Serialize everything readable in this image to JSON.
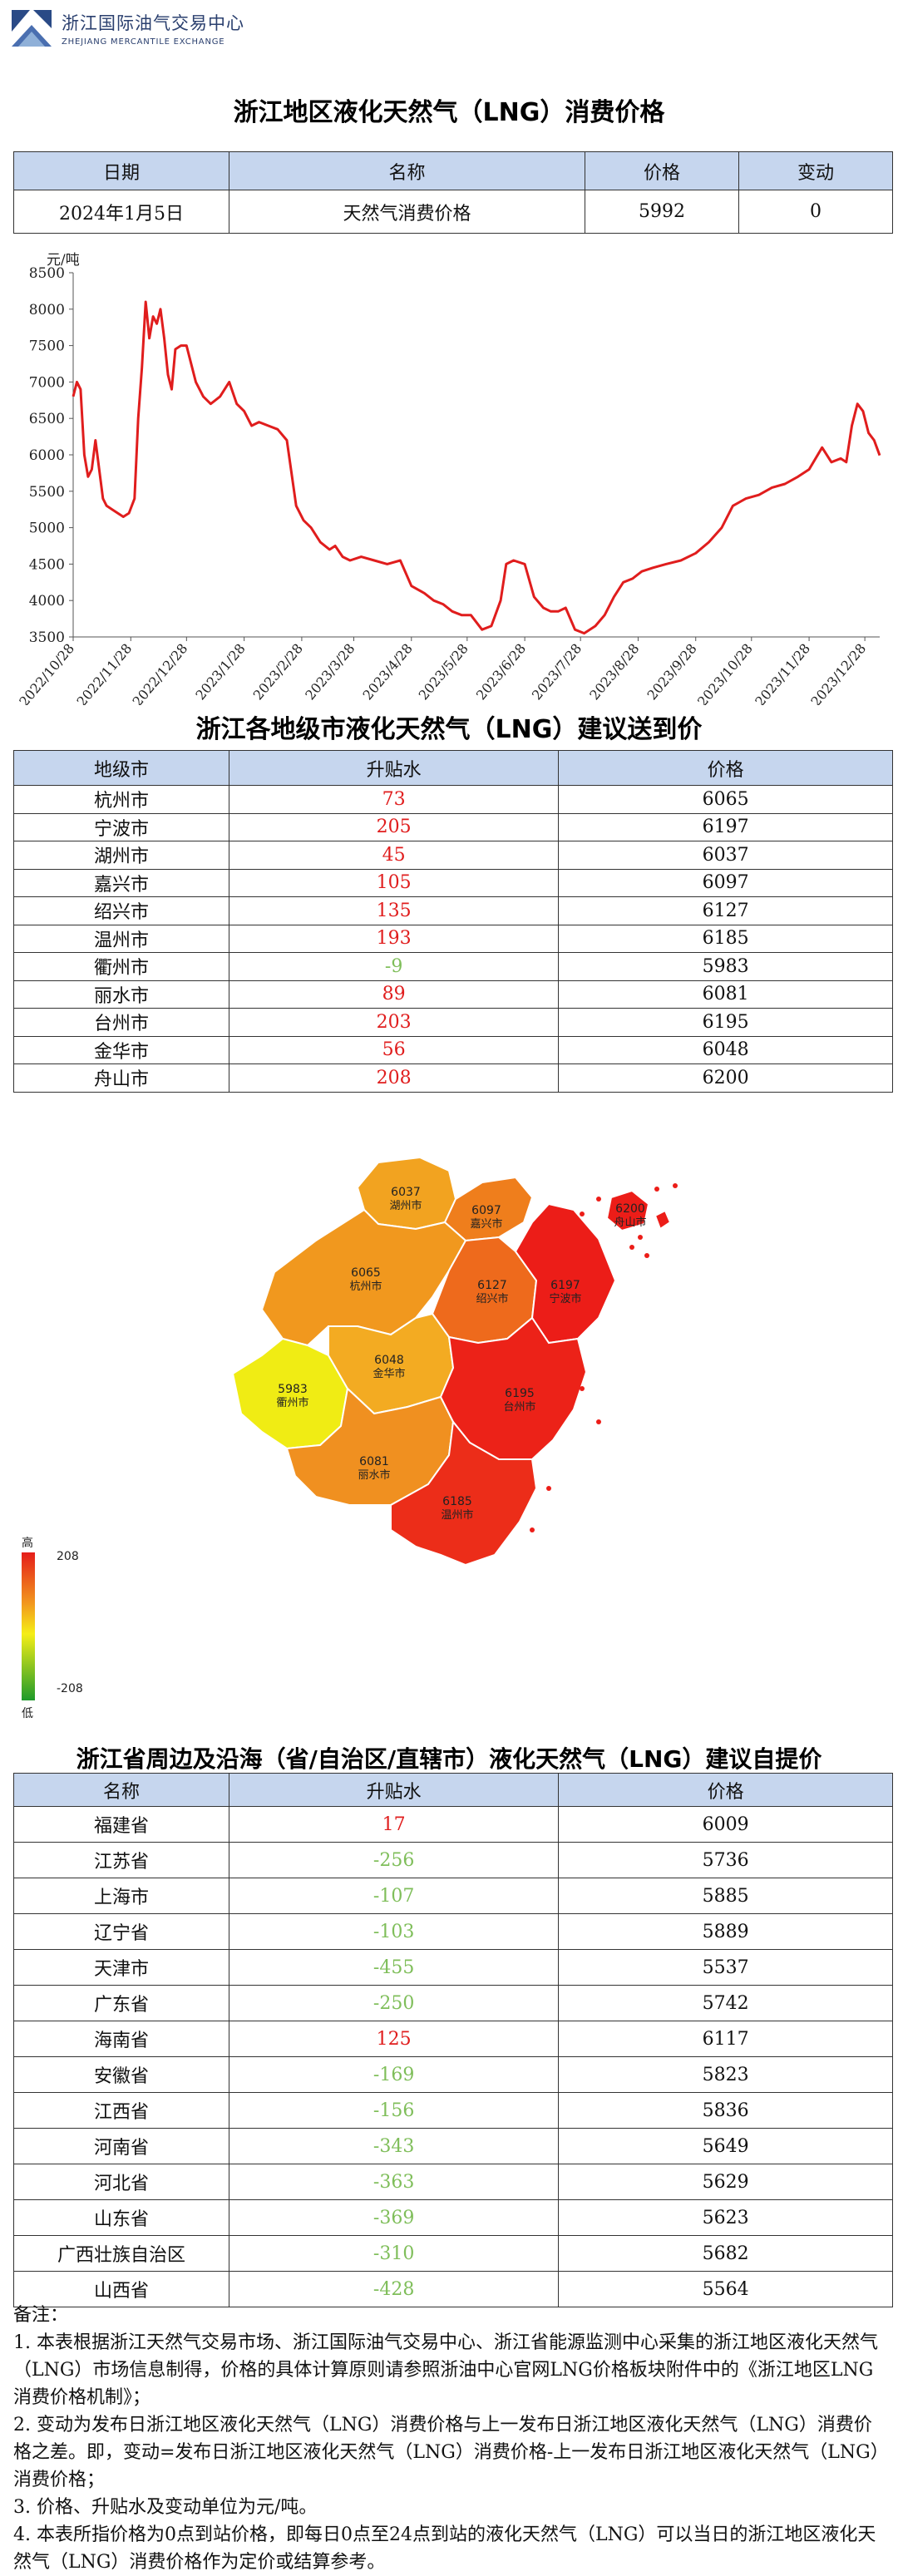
{
  "header": {
    "org_cn": "浙江国际油气交易中心",
    "org_en": "ZHEJIANG MERCANTILE EXCHANGE"
  },
  "section1": {
    "title": "浙江地区液化天然气（LNG）消费价格",
    "columns": [
      "日期",
      "名称",
      "价格",
      "变动"
    ],
    "row": {
      "date": "2024年1月5日",
      "name": "天然气消费价格",
      "price": "5992",
      "change": "0"
    }
  },
  "chart_data": {
    "type": "line",
    "title": "",
    "xlabel": "",
    "ylabel": "元/吨",
    "ylim": [
      3500,
      8500
    ],
    "yticks": [
      3500,
      4000,
      4500,
      5000,
      5500,
      6000,
      6500,
      7000,
      7500,
      8000,
      8500
    ],
    "xtick_labels": [
      "2022/10/28",
      "2022/11/28",
      "2022/12/28",
      "2023/1/28",
      "2023/2/28",
      "2023/3/28",
      "2023/4/28",
      "2023/5/28",
      "2023/6/28",
      "2023/7/28",
      "2023/8/28",
      "2023/9/28",
      "2023/10/28",
      "2023/11/28",
      "2023/12/28"
    ],
    "x_range": [
      "2022/10/28",
      "2024/1/5"
    ],
    "color": "#e01d1d",
    "series": [
      {
        "x": [
          "2022/10/28",
          "2022/10/30",
          "2022/11/1",
          "2022/11/3",
          "2022/11/5",
          "2022/11/7",
          "2022/11/9",
          "2022/11/11",
          "2022/11/13",
          "2022/11/15",
          "2022/11/18",
          "2022/11/21",
          "2022/11/24",
          "2022/11/27",
          "2022/11/30",
          "2022/12/2",
          "2022/12/4",
          "2022/12/6",
          "2022/12/8",
          "2022/12/10",
          "2022/12/12",
          "2022/12/14",
          "2022/12/16",
          "2022/12/18",
          "2022/12/20",
          "2022/12/22",
          "2022/12/25",
          "2022/12/28",
          "2023/1/2",
          "2023/1/6",
          "2023/1/10",
          "2023/1/15",
          "2023/1/20",
          "2023/1/24",
          "2023/1/28",
          "2023/2/1",
          "2023/2/5",
          "2023/2/10",
          "2023/2/15",
          "2023/2/20",
          "2023/2/25",
          "2023/3/1",
          "2023/3/5",
          "2023/3/10",
          "2023/3/15",
          "2023/3/18",
          "2023/3/22",
          "2023/3/26",
          "2023/4/1",
          "2023/4/8",
          "2023/4/15",
          "2023/4/22",
          "2023/4/28",
          "2023/5/5",
          "2023/5/10",
          "2023/5/15",
          "2023/5/20",
          "2023/5/25",
          "2023/5/30",
          "2023/6/5",
          "2023/6/10",
          "2023/6/15",
          "2023/6/18",
          "2023/6/22",
          "2023/6/28",
          "2023/7/3",
          "2023/7/8",
          "2023/7/12",
          "2023/7/16",
          "2023/7/20",
          "2023/7/25",
          "2023/7/30",
          "2023/8/5",
          "2023/8/10",
          "2023/8/15",
          "2023/8/20",
          "2023/8/25",
          "2023/8/30",
          "2023/9/5",
          "2023/9/12",
          "2023/9/20",
          "2023/9/28",
          "2023/10/5",
          "2023/10/12",
          "2023/10/18",
          "2023/10/25",
          "2023/11/1",
          "2023/11/8",
          "2023/11/15",
          "2023/11/22",
          "2023/11/28",
          "2023/12/5",
          "2023/12/10",
          "2023/12/15",
          "2023/12/18",
          "2023/12/21",
          "2023/12/24",
          "2023/12/27",
          "2023/12/30",
          "2024/1/2",
          "2024/1/5"
        ],
        "y": [
          6800,
          7000,
          6900,
          6000,
          5700,
          5800,
          6200,
          5800,
          5400,
          5300,
          5250,
          5200,
          5150,
          5200,
          5400,
          6500,
          7200,
          8100,
          7600,
          7900,
          7800,
          8000,
          7600,
          7100,
          6900,
          7450,
          7500,
          7500,
          7000,
          6800,
          6700,
          6800,
          7000,
          6700,
          6600,
          6400,
          6450,
          6400,
          6350,
          6200,
          5300,
          5100,
          5000,
          4800,
          4700,
          4750,
          4600,
          4550,
          4600,
          4550,
          4500,
          4550,
          4200,
          4100,
          4000,
          3950,
          3850,
          3800,
          3800,
          3600,
          3650,
          4000,
          4500,
          4550,
          4500,
          4050,
          3900,
          3850,
          3850,
          3900,
          3600,
          3550,
          3650,
          3800,
          4050,
          4250,
          4300,
          4400,
          4450,
          4500,
          4550,
          4650,
          4800,
          5000,
          5300,
          5400,
          5450,
          5550,
          5600,
          5700,
          5800,
          6100,
          5900,
          5950,
          5900,
          6400,
          6700,
          6600,
          6300,
          6200,
          5992
        ]
      }
    ]
  },
  "section2": {
    "title": "浙江各地级市液化天然气（LNG）建议送到价",
    "columns": [
      "地级市",
      "升贴水",
      "价格"
    ],
    "rows": [
      {
        "city": "杭州市",
        "premium": "73",
        "price": "6065"
      },
      {
        "city": "宁波市",
        "premium": "205",
        "price": "6197"
      },
      {
        "city": "湖州市",
        "premium": "45",
        "price": "6037"
      },
      {
        "city": "嘉兴市",
        "premium": "105",
        "price": "6097"
      },
      {
        "city": "绍兴市",
        "premium": "135",
        "price": "6127"
      },
      {
        "city": "温州市",
        "premium": "193",
        "price": "6185"
      },
      {
        "city": "衢州市",
        "premium": "-9",
        "price": "5983"
      },
      {
        "city": "丽水市",
        "premium": "89",
        "price": "6081"
      },
      {
        "city": "台州市",
        "premium": "203",
        "price": "6195"
      },
      {
        "city": "金华市",
        "premium": "56",
        "price": "6048"
      },
      {
        "city": "舟山市",
        "premium": "208",
        "price": "6200"
      }
    ]
  },
  "map": {
    "legend_high": "高",
    "legend_low": "低",
    "legend_max": "208",
    "legend_min": "-208",
    "regions": [
      {
        "name": "湖州市",
        "price": "6037",
        "color": "#f2a320"
      },
      {
        "name": "嘉兴市",
        "price": "6097",
        "color": "#ef7e1c"
      },
      {
        "name": "杭州市",
        "price": "6065",
        "color": "#f1981e"
      },
      {
        "name": "绍兴市",
        "price": "6127",
        "color": "#ee6a1c"
      },
      {
        "name": "宁波市",
        "price": "6197",
        "color": "#ec1d18"
      },
      {
        "name": "舟山市",
        "price": "6200",
        "color": "#ec1d18"
      },
      {
        "name": "衢州市",
        "price": "5983",
        "color": "#f0ec14"
      },
      {
        "name": "金华市",
        "price": "6048",
        "color": "#f3ab22"
      },
      {
        "name": "丽水市",
        "price": "6081",
        "color": "#f09020"
      },
      {
        "name": "台州市",
        "price": "6195",
        "color": "#ec2218"
      },
      {
        "name": "温州市",
        "price": "6185",
        "color": "#ec2d19"
      }
    ]
  },
  "section3": {
    "title": "浙江省周边及沿海（省/自治区/直辖市）液化天然气（LNG）建议自提价",
    "columns": [
      "名称",
      "升贴水",
      "价格"
    ],
    "rows": [
      {
        "name": "福建省",
        "premium": "17",
        "price": "6009"
      },
      {
        "name": "江苏省",
        "premium": "-256",
        "price": "5736"
      },
      {
        "name": "上海市",
        "premium": "-107",
        "price": "5885"
      },
      {
        "name": "辽宁省",
        "premium": "-103",
        "price": "5889"
      },
      {
        "name": "天津市",
        "premium": "-455",
        "price": "5537"
      },
      {
        "name": "广东省",
        "premium": "-250",
        "price": "5742"
      },
      {
        "name": "海南省",
        "premium": "125",
        "price": "6117"
      },
      {
        "name": "安徽省",
        "premium": "-169",
        "price": "5823"
      },
      {
        "name": "江西省",
        "premium": "-156",
        "price": "5836"
      },
      {
        "name": "河南省",
        "premium": "-343",
        "price": "5649"
      },
      {
        "name": "河北省",
        "premium": "-363",
        "price": "5629"
      },
      {
        "name": "山东省",
        "premium": "-369",
        "price": "5623"
      },
      {
        "name": "广西壮族自治区",
        "premium": "-310",
        "price": "5682"
      },
      {
        "name": "山西省",
        "premium": "-428",
        "price": "5564"
      }
    ]
  },
  "notes": {
    "heading": "备注：",
    "items": [
      "1. 本表根据浙江天然气交易市场、浙江国际油气交易中心、浙江省能源监测中心采集的浙江地区液化天然气（LNG）市场信息制得，价格的具体计算原则请参照浙油中心官网LNG价格板块附件中的《浙江地区LNG消费价格机制》；",
      "2. 变动为发布日浙江地区液化天然气（LNG）消费价格与上一发布日浙江地区液化天然气（LNG）消费价格之差。即，变动=发布日浙江地区液化天然气（LNG）消费价格-上一发布日浙江地区液化天然气（LNG）消费价格；",
      "3. 价格、升贴水及变动单位为元/吨。",
      "4. 本表所指价格为0点到站价格，即每日0点至24点到站的液化天然气（LNG）可以当日的浙江地区液化天然气（LNG）消费价格作为定价或结算参考。"
    ]
  }
}
